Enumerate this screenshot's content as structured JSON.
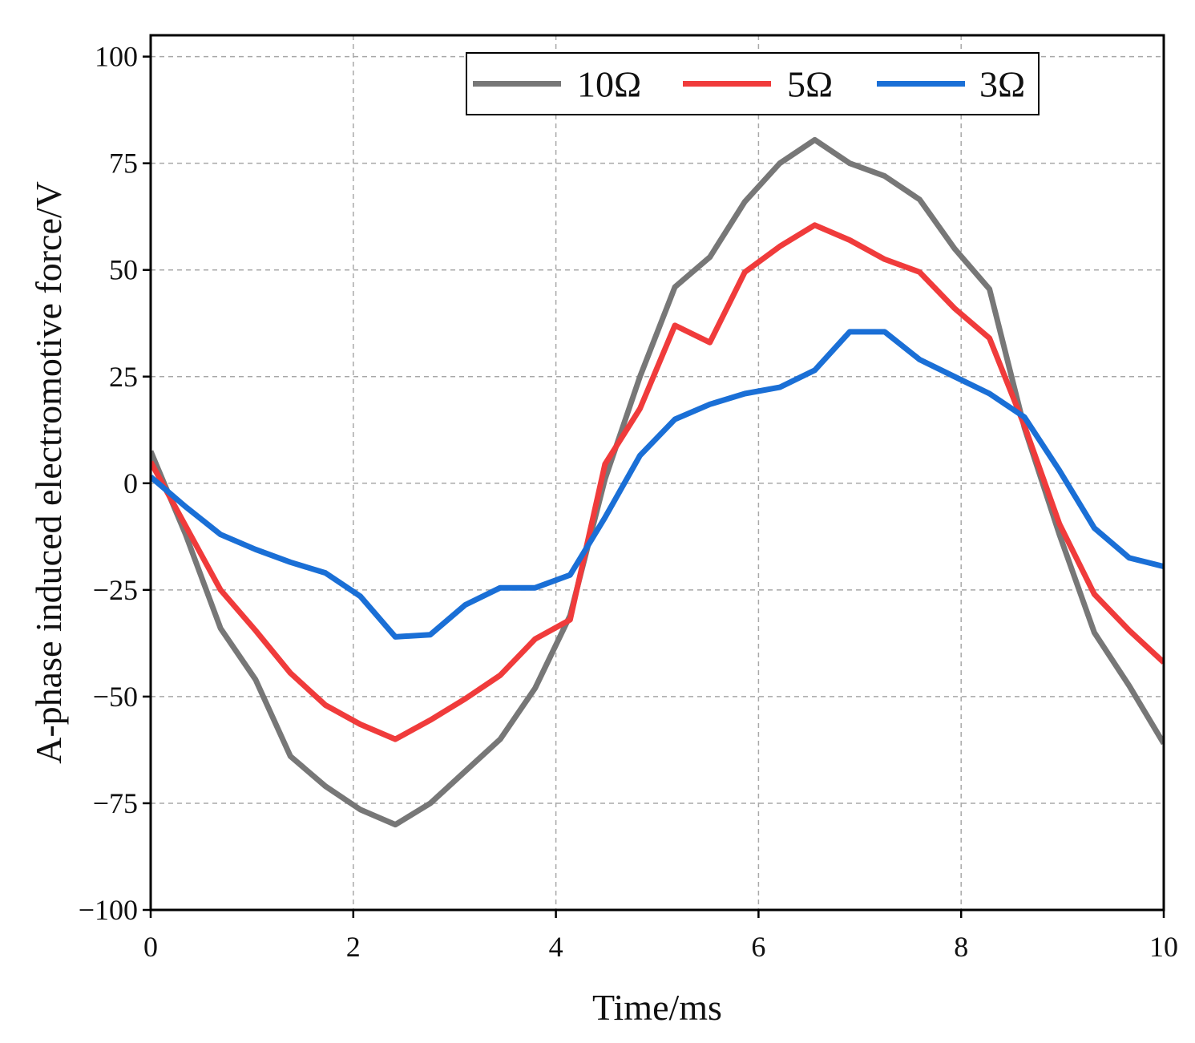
{
  "chart_data": {
    "type": "line",
    "title": "",
    "xlabel": "Time/ms",
    "ylabel": "A-phase induced electromotive force/V",
    "xlim": [
      0,
      10
    ],
    "ylim": [
      -100,
      105
    ],
    "xticks": [
      0,
      2,
      4,
      6,
      8,
      10
    ],
    "xtick_labels": [
      "0",
      "2",
      "4",
      "6",
      "8",
      "10"
    ],
    "yticks": [
      -100,
      -75,
      -50,
      -25,
      0,
      25,
      50,
      75,
      100
    ],
    "ytick_labels": [
      "−100",
      "−75",
      "−50",
      "−25",
      "0",
      "25",
      "50",
      "75",
      "100"
    ],
    "grid": true,
    "legend_position": "top-right",
    "x": [
      0,
      0.345,
      0.69,
      1.035,
      1.38,
      1.725,
      2.07,
      2.415,
      2.76,
      3.105,
      3.45,
      3.795,
      4.14,
      4.485,
      4.83,
      5.175,
      5.52,
      5.865,
      6.21,
      6.555,
      6.9,
      7.245,
      7.59,
      7.935,
      8.28,
      8.625,
      8.97,
      9.315,
      9.66,
      10
    ],
    "series": [
      {
        "name": "10Ω",
        "color": "#777777",
        "values": [
          7.5,
          -12,
          -34,
          -46,
          -64,
          -71,
          -76.5,
          -80,
          -75,
          -67.5,
          -60,
          -48,
          -31,
          1,
          25,
          46,
          53,
          66,
          75,
          80.5,
          75,
          72,
          66.5,
          55,
          45.5,
          13,
          -12,
          -35,
          -47.5,
          -61
        ]
      },
      {
        "name": "5Ω",
        "color": "#f03b3b",
        "values": [
          5,
          -10,
          -25,
          -34.5,
          -44.5,
          -52,
          -56.5,
          -60,
          -55.5,
          -50.5,
          -45,
          -36.5,
          -32,
          4.5,
          17.5,
          37,
          33,
          49.5,
          55.5,
          60.5,
          57,
          52.5,
          49.5,
          41,
          34,
          13.5,
          -9.5,
          -26,
          -34.5,
          -42
        ]
      },
      {
        "name": "3Ω",
        "color": "#1a6fd6",
        "values": [
          1.5,
          -5.5,
          -12,
          -15.5,
          -18.5,
          -21,
          -26.5,
          -36,
          -35.5,
          -28.5,
          -24.5,
          -24.5,
          -21.5,
          -8,
          6.5,
          15,
          18.5,
          21,
          22.5,
          26.5,
          35.5,
          35.5,
          29,
          25,
          21,
          15.5,
          3,
          -10.5,
          -17.5,
          -19.5
        ]
      }
    ]
  }
}
